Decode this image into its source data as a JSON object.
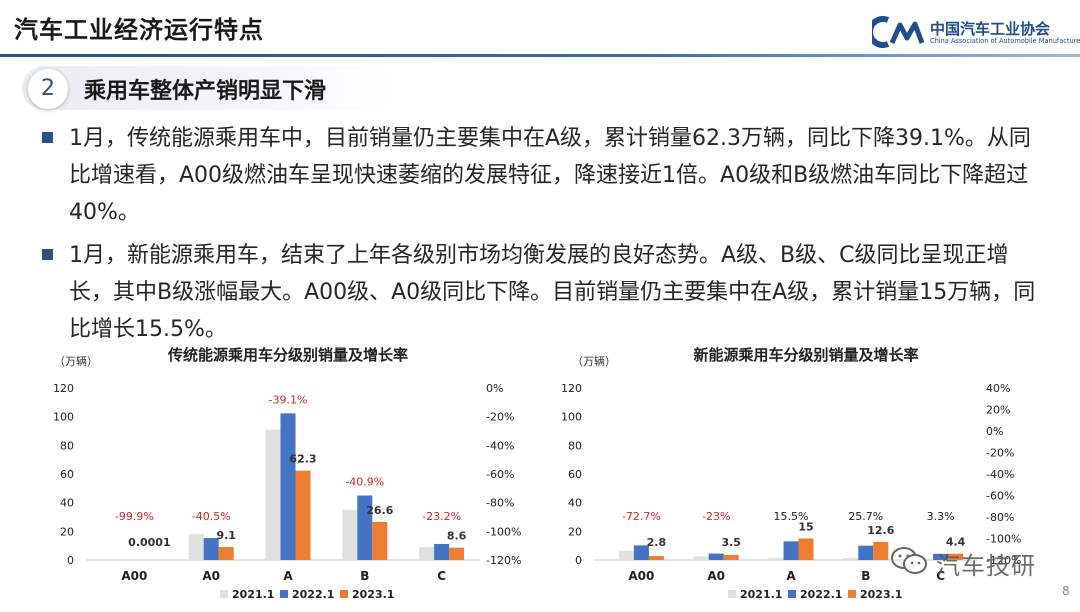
{
  "header": {
    "title": "汽车工业经济运行特点",
    "logo_cn": "中国汽车工业协会",
    "logo_en": "China Association of Automobile Manufacturers"
  },
  "section": {
    "number": "2",
    "title": "乘用车整体产销明显下滑"
  },
  "bullets": [
    "1月，传统能源乘用车中，目前销量仍主要集中在A级，累计销量62.3万辆，同比下降39.1%。从同比增速看，A00级燃油车呈现快速萎缩的发展特征，降速接近1倍。A0级和B级燃油车同比下降超过40%。",
    "1月，新能源乘用车，结束了上年各级别市场均衡发展的良好态势。A级、B级、C级同比呈现正增长，其中B级涨幅最大。A00级、A0级同比下降。目前销量仍主要集中在A级，累计销量15万辆，同比增长15.5%。"
  ],
  "colors": {
    "s2021": "#e0e0e0",
    "s2022": "#4472c4",
    "s2023": "#ed7d31",
    "growth_label": "#e02020",
    "accent": "#2d4f86"
  },
  "chart_data": [
    {
      "type": "bar",
      "title": "传统能源乘用车分级别销量及增长率",
      "unit_label": "（万辆）",
      "categories": [
        "A00",
        "A0",
        "A",
        "B",
        "C"
      ],
      "series": [
        {
          "name": "2021.1",
          "values": [
            0,
            18,
            91,
            35,
            9
          ]
        },
        {
          "name": "2022.1",
          "values": [
            0.0001,
            15.3,
            102.3,
            45,
            11.2
          ]
        },
        {
          "name": "2023.1",
          "values": [
            0.0001,
            9.1,
            62.3,
            26.6,
            8.6
          ]
        }
      ],
      "data_labels": [
        "0.0001",
        "9.1",
        "62.3",
        "26.6",
        "8.6"
      ],
      "growth_labels": [
        "-99.9%",
        "-40.5%",
        "-39.1%",
        "-40.9%",
        "-23.2%"
      ],
      "y_ticks": [
        "0",
        "20",
        "40",
        "60",
        "80",
        "100",
        "120"
      ],
      "y2_ticks": [
        "0%",
        "-20%",
        "-40%",
        "-60%",
        "-80%",
        "-100%",
        "-120%"
      ],
      "ylim": [
        0,
        120
      ],
      "y2lim": [
        -120,
        0
      ]
    },
    {
      "type": "bar",
      "title": "新能源乘用车分级别销量及增长率",
      "unit_label": "（万辆）",
      "categories": [
        "A00",
        "A0",
        "A",
        "B",
        "C"
      ],
      "series": [
        {
          "name": "2021.1",
          "values": [
            6.5,
            2.5,
            1.5,
            1.5,
            0.5
          ]
        },
        {
          "name": "2022.1",
          "values": [
            10.2,
            4.5,
            13,
            10,
            4.3
          ]
        },
        {
          "name": "2023.1",
          "values": [
            2.8,
            3.5,
            15,
            12.6,
            4.4
          ]
        }
      ],
      "data_labels": [
        "2.8",
        "3.5",
        "15",
        "12.6",
        "4.4"
      ],
      "growth_labels": [
        "-72.7%",
        "-23%",
        "15.5%",
        "25.7%",
        "3.3%"
      ],
      "y_ticks": [
        "0",
        "20",
        "40",
        "60",
        "80",
        "100",
        "120"
      ],
      "y2_ticks": [
        "40%",
        "20%",
        "0%",
        "-20%",
        "-40%",
        "-60%",
        "-80%",
        "-100%",
        "-120%"
      ],
      "ylim": [
        0,
        120
      ],
      "y2lim": [
        -120,
        40
      ]
    }
  ],
  "watermark": {
    "text": "汽车技研",
    "bg_text": "中国汽车工业协会"
  },
  "page_number": "8"
}
